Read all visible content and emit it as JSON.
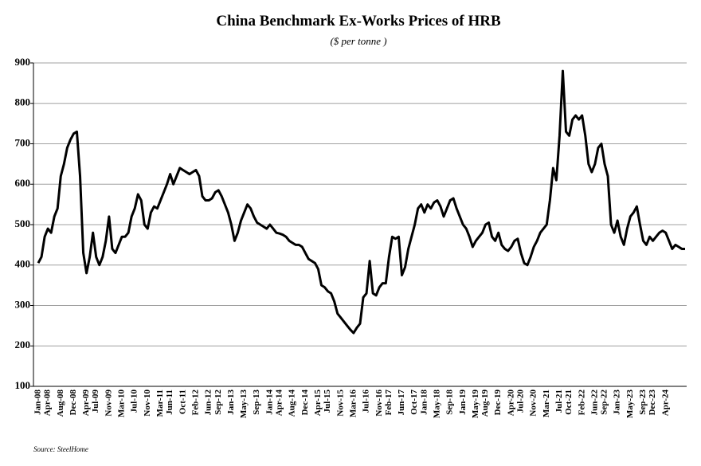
{
  "chart_data": {
    "type": "line",
    "title": "China Benchmark Ex-Works Prices of  HRB",
    "subtitle": "($ per tonne )",
    "source": "Source: SteelHome",
    "ylim": [
      100,
      900
    ],
    "yticks": [
      100,
      200,
      300,
      400,
      500,
      600,
      700,
      800,
      900
    ],
    "grid": true,
    "color": "#000000",
    "categories": [
      "Jan-08",
      null,
      null,
      "Apr-08",
      null,
      null,
      null,
      "Aug-08",
      null,
      null,
      null,
      "Dec-08",
      null,
      null,
      null,
      "Apr-09",
      null,
      null,
      "Jul-09",
      null,
      null,
      null,
      "Nov-09",
      null,
      null,
      null,
      "Mar-10",
      null,
      null,
      null,
      "Jul-10",
      null,
      null,
      null,
      "Nov-10",
      null,
      null,
      null,
      "Mar-11",
      null,
      null,
      "Jun-11",
      null,
      null,
      null,
      "Oct-11",
      null,
      null,
      null,
      "Feb-12",
      null,
      null,
      null,
      "Jun-12",
      null,
      null,
      "Sep-12",
      null,
      null,
      null,
      "Jan-13",
      null,
      null,
      null,
      "May-13",
      null,
      null,
      null,
      "Sep-13",
      null,
      null,
      null,
      "Jan-14",
      null,
      null,
      "Apr-14",
      null,
      null,
      null,
      "Aug-14",
      null,
      null,
      null,
      "Dec-14",
      null,
      null,
      null,
      "Apr-15",
      null,
      null,
      "Jul-15",
      null,
      null,
      null,
      "Nov-15",
      null,
      null,
      null,
      "Mar-16",
      null,
      null,
      null,
      "Jul-16",
      null,
      null,
      null,
      "Nov-16",
      null,
      null,
      "Feb-17",
      null,
      null,
      null,
      "Jun-17",
      null,
      null,
      null,
      "Oct-17",
      null,
      null,
      "Jan-18",
      null,
      null,
      null,
      "May-18",
      null,
      null,
      null,
      "Sep-18",
      null,
      null,
      null,
      "Jan-19",
      null,
      null,
      null,
      "May-19",
      null,
      null,
      "Aug-19",
      null,
      null,
      null,
      "Dec-19",
      null,
      null,
      null,
      "Apr-20",
      null,
      null,
      "Jul-20",
      null,
      null,
      null,
      "Nov-20",
      null,
      null,
      null,
      "Mar-21",
      null,
      null,
      null,
      "Jul-21",
      null,
      null,
      "Oct-21",
      null,
      null,
      null,
      "Feb-22",
      null,
      null,
      null,
      "Jun-22",
      null,
      null,
      "Sep-22",
      null,
      null,
      null,
      "Jan-23",
      null,
      null,
      null,
      "May-23",
      null,
      null,
      null,
      "Sep-23",
      null,
      null,
      "Dec-23",
      null,
      null,
      null,
      "Apr-24",
      null,
      null,
      null,
      null,
      null,
      null
    ],
    "values": [
      405,
      420,
      470,
      490,
      480,
      520,
      540,
      620,
      650,
      690,
      710,
      725,
      730,
      620,
      430,
      380,
      420,
      480,
      420,
      400,
      420,
      460,
      520,
      440,
      430,
      450,
      470,
      470,
      480,
      520,
      540,
      575,
      560,
      500,
      490,
      530,
      545,
      540,
      560,
      580,
      600,
      625,
      600,
      620,
      640,
      635,
      630,
      625,
      630,
      635,
      620,
      570,
      560,
      560,
      565,
      580,
      585,
      570,
      550,
      530,
      500,
      460,
      480,
      510,
      530,
      550,
      540,
      520,
      505,
      500,
      495,
      490,
      500,
      490,
      480,
      478,
      475,
      470,
      460,
      455,
      450,
      450,
      445,
      430,
      415,
      410,
      405,
      390,
      350,
      345,
      335,
      330,
      310,
      280,
      270,
      260,
      250,
      240,
      232,
      245,
      255,
      320,
      330,
      410,
      330,
      325,
      345,
      355,
      355,
      420,
      470,
      465,
      470,
      375,
      395,
      440,
      470,
      500,
      540,
      550,
      530,
      550,
      540,
      555,
      560,
      545,
      520,
      540,
      560,
      565,
      540,
      520,
      500,
      490,
      470,
      445,
      460,
      470,
      480,
      500,
      505,
      470,
      460,
      480,
      450,
      440,
      435,
      445,
      460,
      465,
      430,
      405,
      400,
      420,
      445,
      460,
      480,
      490,
      500,
      560,
      640,
      610,
      720,
      880,
      730,
      720,
      760,
      770,
      760,
      770,
      720,
      650,
      630,
      650,
      690,
      700,
      650,
      620,
      500,
      480,
      510,
      470,
      450,
      490,
      520,
      530,
      545,
      500,
      460,
      450,
      470,
      460,
      470,
      480,
      485,
      480,
      460,
      440,
      450,
      445,
      440,
      440
    ]
  }
}
